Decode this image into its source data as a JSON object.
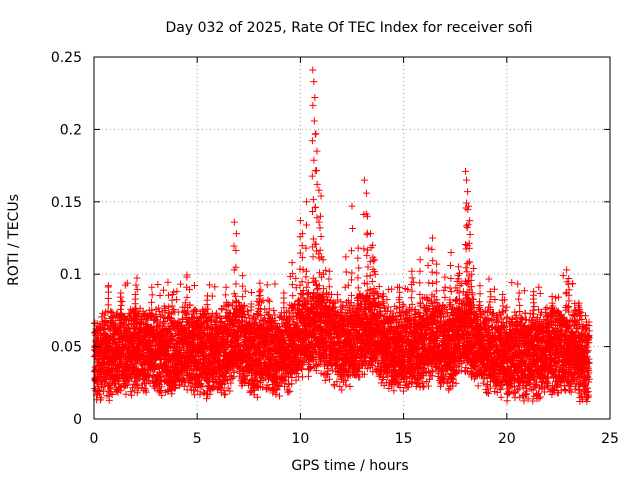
{
  "chart_data": {
    "type": "scatter",
    "title": "Day 032 of 2025, Rate Of TEC Index for receiver sofi",
    "xlabel": "GPS time / hours",
    "ylabel": "ROTI / TECUs",
    "xlim": [
      0,
      25
    ],
    "ylim": [
      0,
      0.25
    ],
    "x_ticks": [
      0,
      5,
      10,
      15,
      20,
      25
    ],
    "x_tick_labels": [
      "0",
      "5",
      "10",
      "15",
      "20",
      "25"
    ],
    "y_ticks": [
      0,
      0.05,
      0.1,
      0.15,
      0.2,
      0.25
    ],
    "y_tick_labels": [
      "0",
      "0.05",
      "0.1",
      "0.15",
      "0.2",
      "0.25"
    ],
    "grid": true,
    "marker": "+",
    "series_color": "#ff0000",
    "series": [
      {
        "x": [
          0.1,
          0.4,
          0.8,
          1.2,
          1.6,
          2.0,
          2.4,
          2.8,
          3.2,
          3.6,
          4.0,
          4.4,
          4.8,
          5.2,
          5.6,
          6.0,
          6.4,
          6.8,
          7.2,
          7.6,
          8.0,
          8.4,
          8.8,
          9.2,
          9.6,
          10.0,
          10.4,
          10.8,
          11.2,
          11.6,
          12.0,
          12.4,
          12.8,
          13.2,
          13.6,
          14.0,
          14.4,
          14.8,
          15.2,
          15.6,
          16.0,
          16.4,
          16.8,
          17.2,
          17.6,
          18.0,
          18.4,
          18.8,
          19.2,
          19.6,
          20.0,
          20.4,
          20.8,
          21.2,
          21.6,
          22.0,
          22.4,
          22.8,
          23.2,
          23.6,
          23.9
        ],
        "y": [
          0.04,
          0.045,
          0.042,
          0.05,
          0.044,
          0.048,
          0.046,
          0.052,
          0.045,
          0.047,
          0.043,
          0.05,
          0.048,
          0.046,
          0.044,
          0.049,
          0.047,
          0.055,
          0.05,
          0.046,
          0.045,
          0.048,
          0.044,
          0.047,
          0.05,
          0.058,
          0.06,
          0.065,
          0.058,
          0.055,
          0.05,
          0.053,
          0.057,
          0.062,
          0.06,
          0.052,
          0.05,
          0.048,
          0.049,
          0.051,
          0.053,
          0.055,
          0.05,
          0.048,
          0.056,
          0.06,
          0.055,
          0.05,
          0.047,
          0.045,
          0.043,
          0.046,
          0.044,
          0.042,
          0.045,
          0.048,
          0.046,
          0.05,
          0.047,
          0.043,
          0.038
        ]
      }
    ],
    "peaks": [
      {
        "x": 0.7,
        "y": 0.092
      },
      {
        "x": 1.3,
        "y": 0.087
      },
      {
        "x": 2.0,
        "y": 0.086
      },
      {
        "x": 2.8,
        "y": 0.091
      },
      {
        "x": 3.8,
        "y": 0.086
      },
      {
        "x": 4.5,
        "y": 0.098
      },
      {
        "x": 5.5,
        "y": 0.085
      },
      {
        "x": 6.4,
        "y": 0.091
      },
      {
        "x": 6.8,
        "y": 0.136
      },
      {
        "x": 6.9,
        "y": 0.128
      },
      {
        "x": 7.2,
        "y": 0.099
      },
      {
        "x": 8.0,
        "y": 0.085
      },
      {
        "x": 9.2,
        "y": 0.087
      },
      {
        "x": 9.6,
        "y": 0.108
      },
      {
        "x": 10.0,
        "y": 0.137
      },
      {
        "x": 10.1,
        "y": 0.128
      },
      {
        "x": 10.3,
        "y": 0.15
      },
      {
        "x": 10.6,
        "y": 0.241
      },
      {
        "x": 10.65,
        "y": 0.233
      },
      {
        "x": 10.7,
        "y": 0.222
      },
      {
        "x": 10.75,
        "y": 0.197
      },
      {
        "x": 10.8,
        "y": 0.185
      },
      {
        "x": 10.9,
        "y": 0.158
      },
      {
        "x": 11.0,
        "y": 0.154
      },
      {
        "x": 10.95,
        "y": 0.132
      },
      {
        "x": 11.1,
        "y": 0.11
      },
      {
        "x": 11.4,
        "y": 0.102
      },
      {
        "x": 12.2,
        "y": 0.112
      },
      {
        "x": 12.5,
        "y": 0.147
      },
      {
        "x": 12.8,
        "y": 0.118
      },
      {
        "x": 13.1,
        "y": 0.165
      },
      {
        "x": 13.2,
        "y": 0.156
      },
      {
        "x": 13.25,
        "y": 0.14
      },
      {
        "x": 13.4,
        "y": 0.128
      },
      {
        "x": 13.5,
        "y": 0.12
      },
      {
        "x": 13.6,
        "y": 0.11
      },
      {
        "x": 14.8,
        "y": 0.091
      },
      {
        "x": 15.4,
        "y": 0.102
      },
      {
        "x": 15.8,
        "y": 0.11
      },
      {
        "x": 16.2,
        "y": 0.118
      },
      {
        "x": 16.4,
        "y": 0.125
      },
      {
        "x": 16.6,
        "y": 0.107
      },
      {
        "x": 17.0,
        "y": 0.098
      },
      {
        "x": 17.3,
        "y": 0.115
      },
      {
        "x": 17.6,
        "y": 0.095
      },
      {
        "x": 18.0,
        "y": 0.171
      },
      {
        "x": 18.05,
        "y": 0.165
      },
      {
        "x": 18.1,
        "y": 0.157
      },
      {
        "x": 18.15,
        "y": 0.147
      },
      {
        "x": 18.2,
        "y": 0.137
      },
      {
        "x": 18.3,
        "y": 0.1
      },
      {
        "x": 18.7,
        "y": 0.092
      },
      {
        "x": 19.2,
        "y": 0.088
      },
      {
        "x": 19.8,
        "y": 0.086
      },
      {
        "x": 20.6,
        "y": 0.087
      },
      {
        "x": 21.3,
        "y": 0.088
      },
      {
        "x": 22.2,
        "y": 0.08
      },
      {
        "x": 22.9,
        "y": 0.103
      },
      {
        "x": 23.0,
        "y": 0.097
      },
      {
        "x": 23.5,
        "y": 0.08
      }
    ]
  }
}
